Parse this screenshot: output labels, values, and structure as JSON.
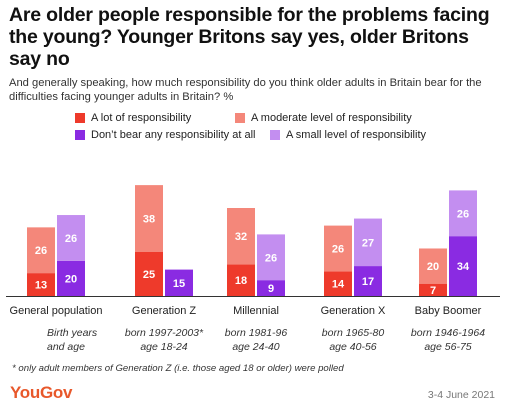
{
  "title": "Are older people responsible for the problems facing the young? Younger Britons say yes, older Britons say no",
  "subtitle": "And generally speaking, how much responsibility do you think older adults in Britain bear for the difficulties facing younger adults in Britain? %",
  "colors": {
    "a_lot": "#ee3a2b",
    "moderate": "#f4877a",
    "none": "#8a2be2",
    "small": "#c38ef0"
  },
  "legend": [
    {
      "key": "a_lot",
      "label": "A lot of responsibility"
    },
    {
      "key": "moderate",
      "label": "A moderate level of responsibility"
    },
    {
      "key": "none",
      "label": "Don’t bear any responsibility at all"
    },
    {
      "key": "small",
      "label": "A small level of responsibility"
    }
  ],
  "chart_data": {
    "type": "bar",
    "categories": [
      "General population",
      "Generation Z",
      "Millennial",
      "Generation X",
      "Baby Boomer"
    ],
    "category_notes": [
      {
        "line1": "Birth years",
        "line2": "and age"
      },
      {
        "line1": "born 1997-2003*",
        "line2": "age 18-24"
      },
      {
        "line1": "born 1981-96",
        "line2": "age 24-40"
      },
      {
        "line1": "born 1965-80",
        "line2": "age 40-56"
      },
      {
        "line1": "born 1946-1964",
        "line2": "age 56-75"
      }
    ],
    "series": [
      {
        "name": "A lot of responsibility",
        "values": [
          13,
          25,
          18,
          14,
          7
        ]
      },
      {
        "name": "A moderate level of responsibility",
        "values": [
          26,
          38,
          32,
          26,
          20
        ]
      },
      {
        "name": "Don’t bear any responsibility at all",
        "values": [
          20,
          15,
          9,
          17,
          34
        ]
      },
      {
        "name": "A small level of responsibility",
        "values": [
          26,
          0,
          26,
          27,
          26
        ]
      }
    ],
    "stacks": [
      [
        "A lot of responsibility",
        "A moderate level of responsibility"
      ],
      [
        "Don’t bear any responsibility at all",
        "A small level of responsibility"
      ]
    ],
    "ylim": [
      0,
      100
    ]
  },
  "footnote": "* only adult members of Generation Z (i.e. those aged 18 or older) were polled",
  "brand": "YouGov",
  "date": "3-4 June 2021"
}
